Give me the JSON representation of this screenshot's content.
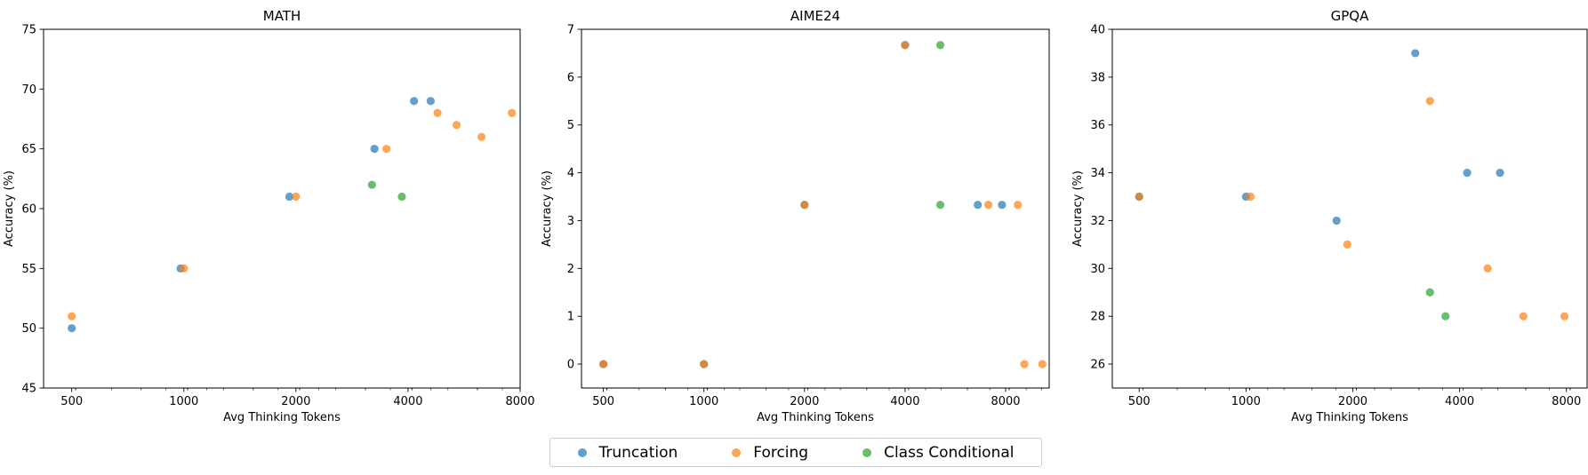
{
  "chart_data": [
    {
      "type": "scatter",
      "title": "MATH",
      "xlabel": "Avg Thinking Tokens",
      "ylabel": "Accuracy (%)",
      "x_scale": "log2",
      "xlim": [
        420,
        8000
      ],
      "ylim": [
        45,
        75
      ],
      "x_ticks": [
        500,
        1000,
        2000,
        4000,
        8000
      ],
      "x_tick_labels": [
        "500",
        "1000",
        "2000",
        "4000",
        "8000"
      ],
      "y_ticks": [
        45,
        50,
        55,
        60,
        65,
        70,
        75
      ],
      "y_tick_labels": [
        "45",
        "50",
        "55",
        "60",
        "65",
        "70",
        "75"
      ],
      "series": [
        {
          "name": "Truncation",
          "color": "#1f77b4",
          "points": [
            [
              500,
              50
            ],
            [
              980,
              55
            ],
            [
              1920,
              61
            ],
            [
              3250,
              65
            ],
            [
              4150,
              69
            ],
            [
              4600,
              69
            ]
          ]
        },
        {
          "name": "Forcing",
          "color": "#ff7f0e",
          "points": [
            [
              500,
              51
            ],
            [
              1000,
              55
            ],
            [
              2000,
              61
            ],
            [
              3500,
              65
            ],
            [
              4800,
              68
            ],
            [
              5400,
              67
            ],
            [
              6300,
              66
            ],
            [
              7600,
              68
            ]
          ]
        },
        {
          "name": "Class Conditional",
          "color": "#2ca02c",
          "points": [
            [
              3200,
              62
            ],
            [
              3850,
              61
            ]
          ]
        }
      ]
    },
    {
      "type": "scatter",
      "title": "AIME24",
      "xlabel": "Avg Thinking Tokens",
      "ylabel": "Accuracy (%)",
      "x_scale": "log2",
      "xlim": [
        430,
        10800
      ],
      "ylim": [
        -0.5,
        7
      ],
      "x_ticks": [
        500,
        1000,
        2000,
        4000,
        8000
      ],
      "x_tick_labels": [
        "500",
        "1000",
        "2000",
        "4000",
        "8000"
      ],
      "y_ticks": [
        0,
        1,
        2,
        3,
        4,
        5,
        6,
        7
      ],
      "y_tick_labels": [
        "0",
        "1",
        "2",
        "3",
        "4",
        "5",
        "6",
        "7"
      ],
      "series": [
        {
          "name": "Truncation",
          "color": "#1f77b4",
          "points": [
            [
              500,
              0
            ],
            [
              1000,
              0
            ],
            [
              2000,
              3.33
            ],
            [
              4000,
              6.67
            ],
            [
              6600,
              3.33
            ],
            [
              7800,
              3.33
            ]
          ]
        },
        {
          "name": "Forcing",
          "color": "#ff7f0e",
          "points": [
            [
              500,
              0
            ],
            [
              1000,
              0
            ],
            [
              2000,
              3.33
            ],
            [
              4000,
              6.67
            ],
            [
              7100,
              3.33
            ],
            [
              8700,
              3.33
            ],
            [
              9100,
              0
            ],
            [
              10300,
              0
            ]
          ]
        },
        {
          "name": "Class Conditional",
          "color": "#2ca02c",
          "points": [
            [
              5100,
              6.67
            ],
            [
              5100,
              3.33
            ]
          ]
        }
      ]
    },
    {
      "type": "scatter",
      "title": "GPQA",
      "xlabel": "Avg Thinking Tokens",
      "ylabel": "Accuracy (%)",
      "x_scale": "log2",
      "xlim": [
        420,
        9150
      ],
      "ylim": [
        25,
        40
      ],
      "x_ticks": [
        500,
        1000,
        2000,
        4000,
        8000
      ],
      "x_tick_labels": [
        "500",
        "1000",
        "2000",
        "4000",
        "8000"
      ],
      "y_ticks": [
        26,
        28,
        30,
        32,
        34,
        36,
        38,
        40
      ],
      "y_tick_labels": [
        "26",
        "28",
        "30",
        "32",
        "34",
        "36",
        "38",
        "40"
      ],
      "series": [
        {
          "name": "Truncation",
          "color": "#1f77b4",
          "points": [
            [
              500,
              33
            ],
            [
              1000,
              33
            ],
            [
              1800,
              32
            ],
            [
              3000,
              39
            ],
            [
              4200,
              34
            ],
            [
              5200,
              34
            ]
          ]
        },
        {
          "name": "Forcing",
          "color": "#ff7f0e",
          "points": [
            [
              500,
              33
            ],
            [
              1030,
              33
            ],
            [
              1930,
              31
            ],
            [
              3300,
              37
            ],
            [
              4800,
              30
            ],
            [
              6050,
              28
            ],
            [
              7900,
              28
            ]
          ]
        },
        {
          "name": "Class Conditional",
          "color": "#2ca02c",
          "points": [
            [
              3300,
              29
            ],
            [
              3650,
              28
            ]
          ]
        }
      ]
    }
  ],
  "legend": {
    "position": "bottom-center",
    "items": [
      {
        "label": "Truncation",
        "color": "#1f77b4"
      },
      {
        "label": "Forcing",
        "color": "#ff7f0e"
      },
      {
        "label": "Class Conditional",
        "color": "#2ca02c"
      }
    ]
  }
}
